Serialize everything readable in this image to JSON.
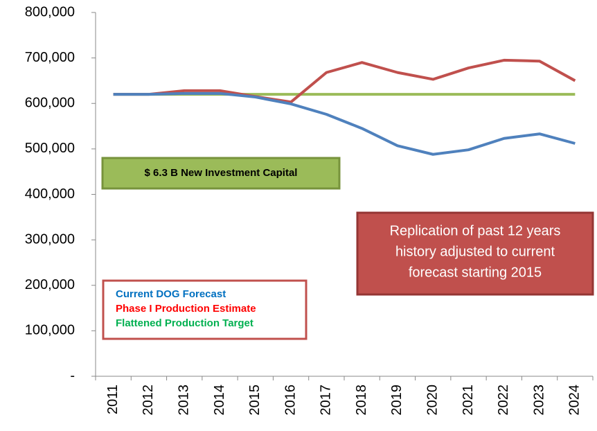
{
  "chart_data": {
    "type": "line",
    "categories": [
      "2011",
      "2012",
      "2013",
      "2014",
      "2015",
      "2016",
      "2017",
      "2018",
      "2019",
      "2020",
      "2021",
      "2022",
      "2023",
      "2024"
    ],
    "series": [
      {
        "name": "Current DOG Forecast",
        "color": "#4f81bd",
        "label_color": "#0070c0",
        "values": [
          620000,
          620000,
          622000,
          622000,
          614000,
          599000,
          576000,
          545000,
          507000,
          488000,
          498000,
          523000,
          533000,
          512000
        ]
      },
      {
        "name": "Phase I Production Estimate",
        "color": "#c0504d",
        "label_color": "#ff0000",
        "values": [
          620000,
          620000,
          628000,
          628000,
          615000,
          603000,
          668000,
          690000,
          668000,
          653000,
          678000,
          695000,
          693000,
          650000
        ]
      },
      {
        "name": "Flattened Production Target",
        "color": "#9bbb59",
        "label_color": "#00b050",
        "values": [
          620000,
          620000,
          620000,
          620000,
          620000,
          620000,
          620000,
          620000,
          620000,
          620000,
          620000,
          620000,
          620000,
          620000
        ]
      }
    ],
    "ylim": [
      0,
      800000
    ],
    "yticks": [
      {
        "value": 0,
        "label": "-"
      },
      {
        "value": 100000,
        "label": "100,000"
      },
      {
        "value": 200000,
        "label": "200,000"
      },
      {
        "value": 300000,
        "label": "300,000"
      },
      {
        "value": 400000,
        "label": "400,000"
      },
      {
        "value": 500000,
        "label": "500,000"
      },
      {
        "value": 600000,
        "label": "600,000"
      },
      {
        "value": 700000,
        "label": "700,000"
      },
      {
        "value": 800000,
        "label": "800,000"
      }
    ],
    "annotations": [
      {
        "text": [
          "$ 6.3 B New Investment Capital"
        ]
      },
      {
        "text": [
          "Replication of past 12 years",
          "history adjusted to current",
          "forecast starting 2015"
        ]
      }
    ]
  }
}
